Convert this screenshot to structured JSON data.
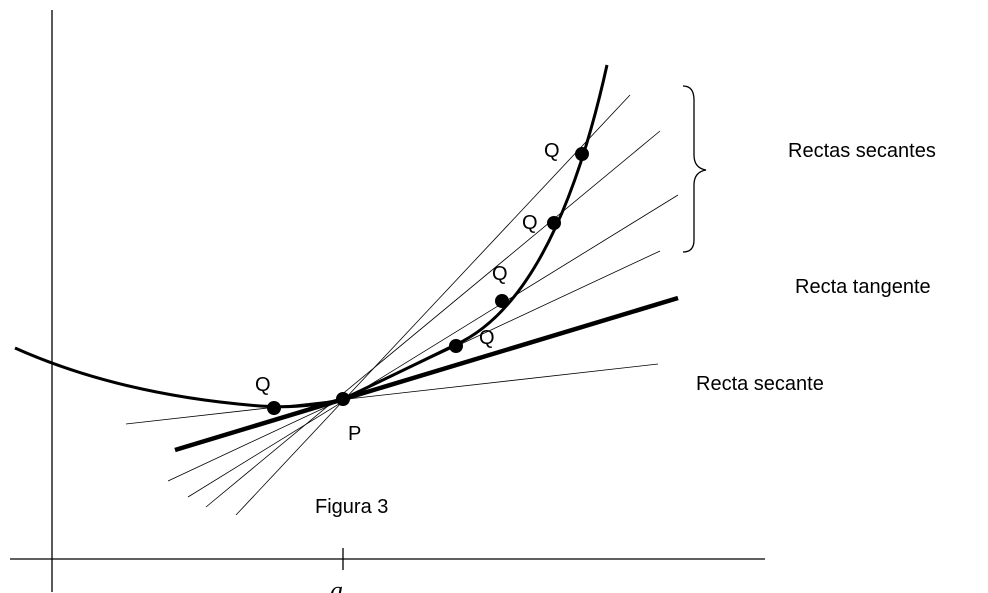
{
  "diagram": {
    "figure_label": "Figura 3",
    "x_axis_tick_label": "a",
    "point_p_label": "P",
    "point_q_label": "Q",
    "secant_lines_group_label": "Rectas secantes",
    "tangent_line_label": "Recta tangente",
    "single_secant_label": "Recta secante",
    "colors": {
      "ink": "#000000",
      "background": "#ffffff"
    }
  }
}
